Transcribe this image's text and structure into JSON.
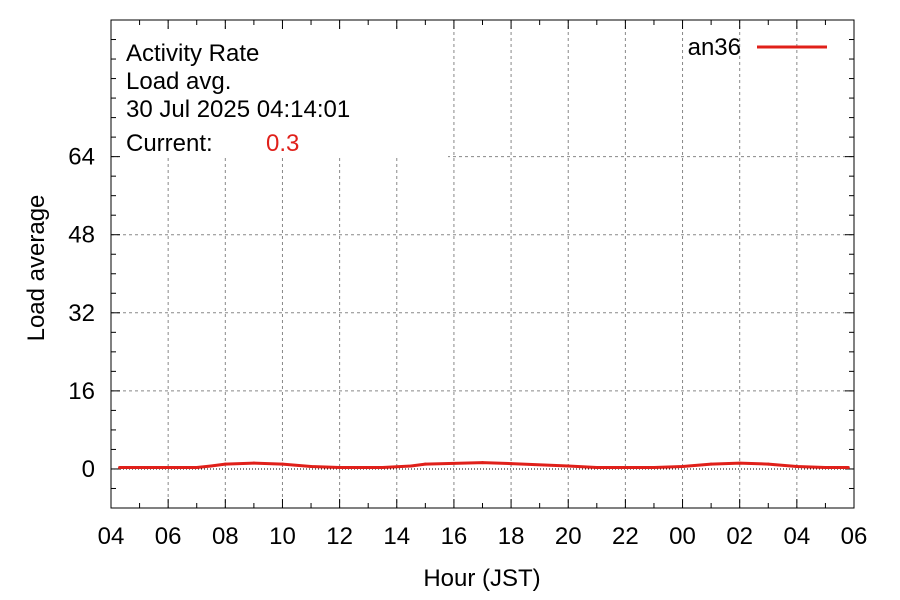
{
  "chart_data": {
    "type": "line",
    "title_lines": [
      "Activity Rate",
      "Load avg.",
      "30 Jul 2025 04:14:01"
    ],
    "current_label": "Current:",
    "current_value": "0.3",
    "xlabel": "Hour (JST)",
    "ylabel": "Load average",
    "x_ticks": [
      "04",
      "06",
      "08",
      "10",
      "12",
      "14",
      "16",
      "18",
      "20",
      "22",
      "00",
      "02",
      "04",
      "06"
    ],
    "y_ticks": [
      0,
      16,
      32,
      48,
      64
    ],
    "ylim": [
      -8,
      92
    ],
    "xlim_hours": [
      0,
      26
    ],
    "grid": true,
    "legend_position": "top-right",
    "series": [
      {
        "name": "an36",
        "color": "#e0201a",
        "x_hours": [
          0.3,
          3,
          3.5,
          4,
          5,
          6,
          7,
          8,
          9.5,
          10.5,
          11,
          13,
          14,
          16,
          17,
          19,
          20,
          21,
          22,
          23,
          24,
          25,
          25.5,
          25.8
        ],
        "values": [
          0.3,
          0.3,
          0.6,
          1.0,
          1.2,
          1.0,
          0.5,
          0.3,
          0.3,
          0.6,
          1.0,
          1.3,
          1.1,
          0.6,
          0.3,
          0.3,
          0.5,
          1.0,
          1.2,
          1.0,
          0.5,
          0.3,
          0.3,
          0.3
        ]
      }
    ]
  }
}
